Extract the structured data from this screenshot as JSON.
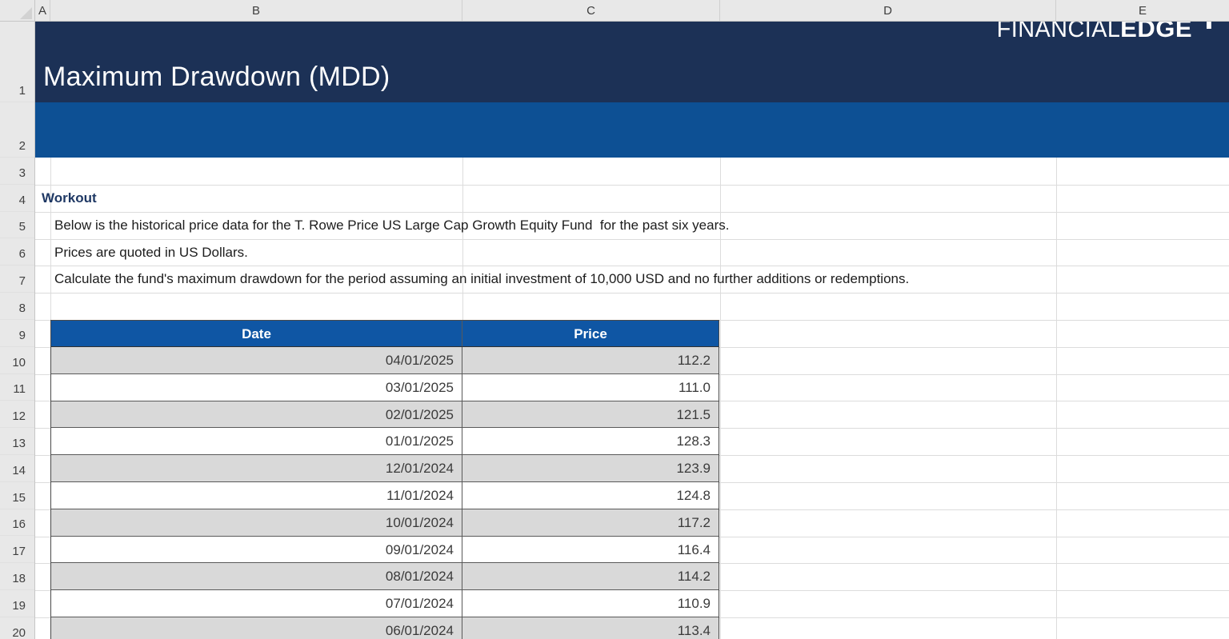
{
  "theme": {
    "banner_navy": "#1C3156",
    "band_blue": "#0D5094",
    "table_header_blue": "#0F56A4",
    "row_alt_gray": "#D9D9D9",
    "accent_text_navy": "#1F3864"
  },
  "sheet": {
    "title": "Maximum Drawdown (MDD)",
    "logo": {
      "thin": "FINANCIAL",
      "bold": "EDGE"
    },
    "column_headers": [
      "A",
      "B",
      "C",
      "D",
      "E"
    ],
    "row_numbers": [
      "1",
      "2",
      "3",
      "4",
      "5",
      "6",
      "7",
      "8",
      "9",
      "10",
      "11",
      "12",
      "13",
      "14",
      "15",
      "16",
      "17",
      "18",
      "19",
      "20"
    ],
    "workout_label": "Workout",
    "description_lines": [
      "Below is the historical price data for the T. Rowe Price US Large Cap Growth Equity Fund  for the past six years.",
      "Prices are quoted in US Dollars.",
      "Calculate the fund's maximum drawdown for the period assuming an initial investment of 10,000 USD and no further additions or redemptions."
    ],
    "table": {
      "headers": [
        "Date",
        "Price"
      ],
      "rows": [
        {
          "date": "04/01/2025",
          "price": "112.2"
        },
        {
          "date": "03/01/2025",
          "price": "111.0"
        },
        {
          "date": "02/01/2025",
          "price": "121.5"
        },
        {
          "date": "01/01/2025",
          "price": "128.3"
        },
        {
          "date": "12/01/2024",
          "price": "123.9"
        },
        {
          "date": "11/01/2024",
          "price": "124.8"
        },
        {
          "date": "10/01/2024",
          "price": "117.2"
        },
        {
          "date": "09/01/2024",
          "price": "116.4"
        },
        {
          "date": "08/01/2024",
          "price": "114.2"
        },
        {
          "date": "07/01/2024",
          "price": "110.9"
        },
        {
          "date": "06/01/2024",
          "price": "113.4"
        }
      ]
    }
  }
}
